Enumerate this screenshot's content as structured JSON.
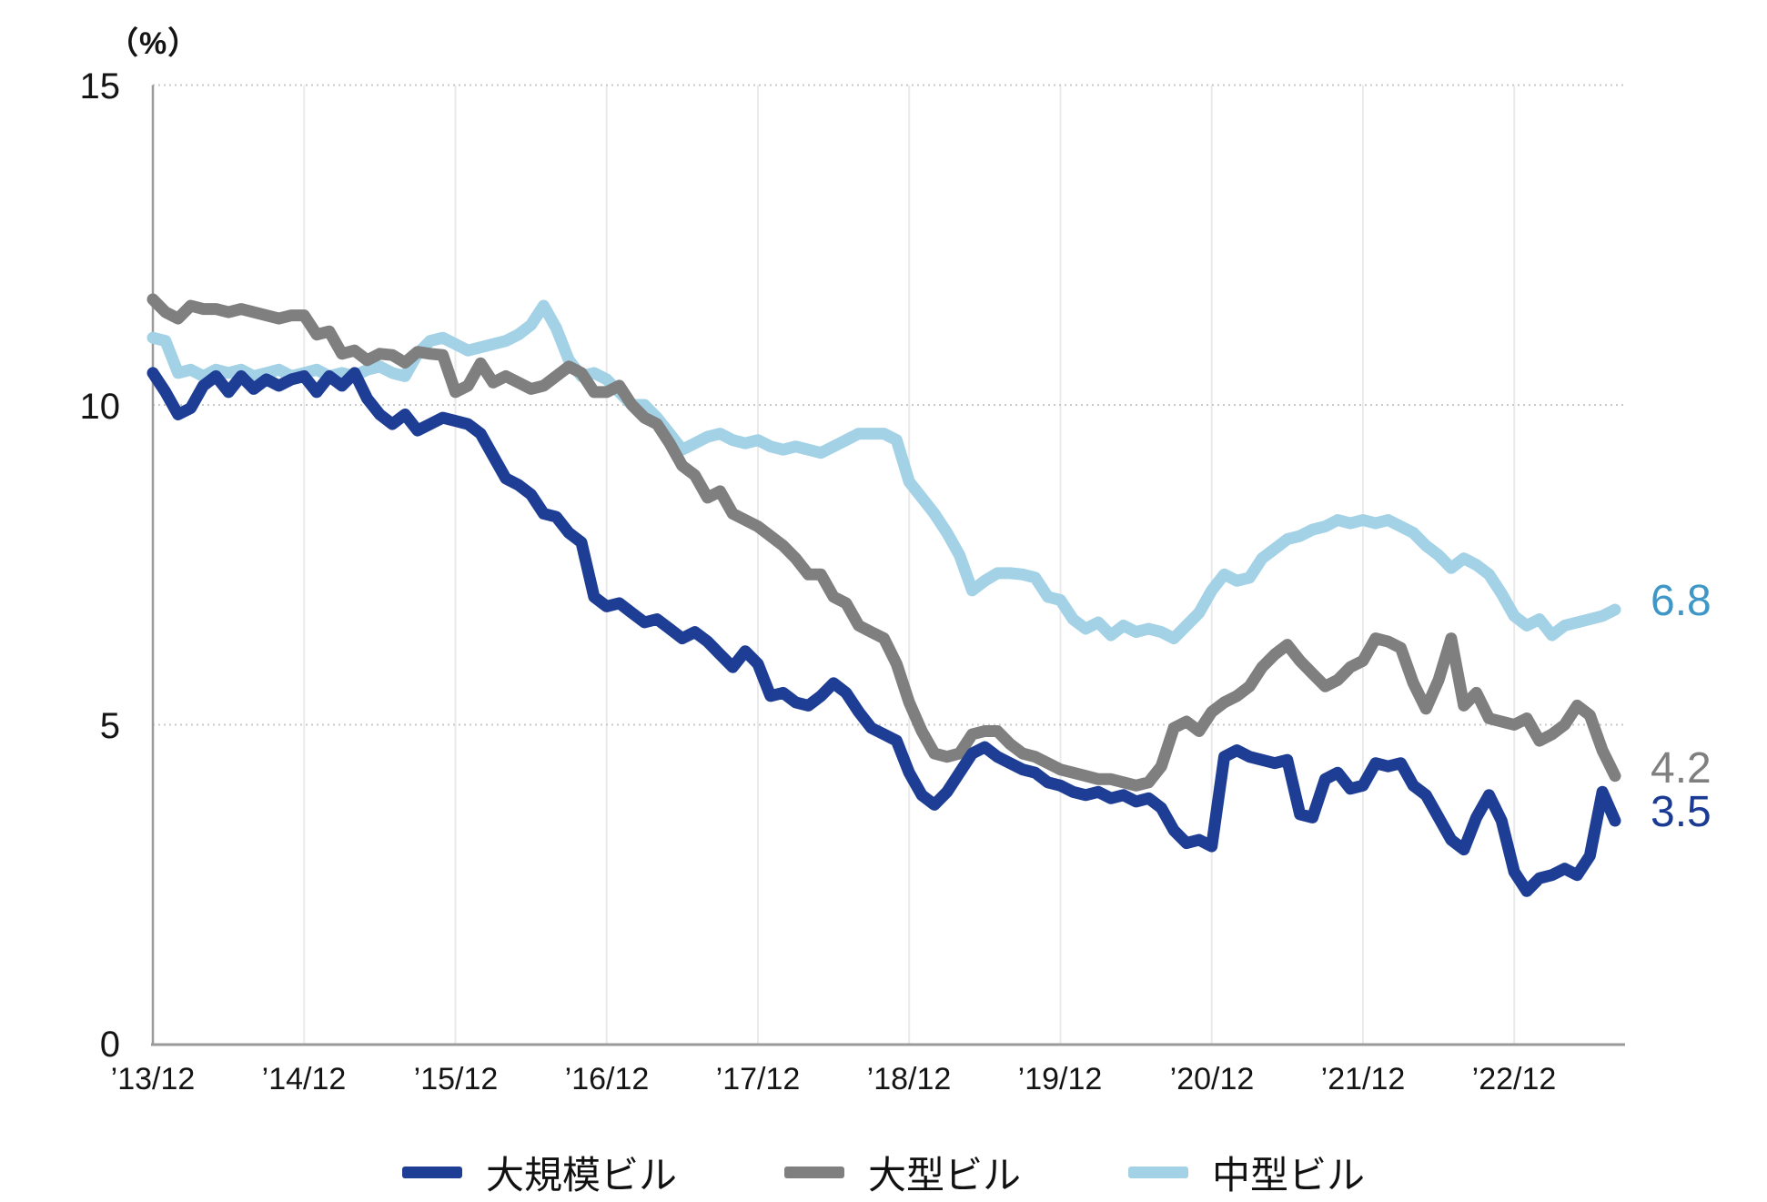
{
  "y_axis_unit": "（%）",
  "end_labels": [
    {
      "series": "中型ビル",
      "text": "6.8",
      "color": "#3e97c6"
    },
    {
      "series": "大型ビル",
      "text": "4.2",
      "color": "#7f7f7f"
    },
    {
      "series": "大規模ビル",
      "text": "3.5",
      "color": "#1a3a94"
    }
  ],
  "legend": [
    {
      "label": "大規模ビル",
      "color": "#1e3e95"
    },
    {
      "label": "大型ビル",
      "color": "#7f7f7f"
    },
    {
      "label": "中型ビル",
      "color": "#a3d2e6"
    }
  ],
  "chart_data": {
    "type": "line",
    "title": "",
    "xlabel": "",
    "ylabel": "（%）",
    "ylim": [
      0,
      15
    ],
    "y_tick_labels": [
      "15",
      "10",
      "5",
      "0"
    ],
    "y_tick_values": [
      15,
      10,
      5,
      0
    ],
    "x_tick_labels": [
      "’13/12",
      "’14/12",
      "’15/12",
      "’16/12",
      "’17/12",
      "’18/12",
      "’19/12",
      "’20/12",
      "’21/12",
      "’22/12"
    ],
    "x_start": "2013/12",
    "x_end": "2023/08",
    "interval": "monthly",
    "months_per_x_tick": 12,
    "grid": {
      "vertical": "solid-light",
      "horizontal": "dotted at 5,10,15"
    },
    "legend_position": "bottom",
    "series": [
      {
        "name": "中型ビル",
        "color": "#a3d2e6",
        "end_value": 6.8,
        "values": [
          11.05,
          11.0,
          10.5,
          10.55,
          10.45,
          10.55,
          10.5,
          10.55,
          10.45,
          10.5,
          10.55,
          10.45,
          10.5,
          10.55,
          10.45,
          10.5,
          10.45,
          10.55,
          10.6,
          10.5,
          10.45,
          10.8,
          11.0,
          11.05,
          10.95,
          10.85,
          10.9,
          10.95,
          11.0,
          11.1,
          11.25,
          11.55,
          11.2,
          10.7,
          10.45,
          10.5,
          10.4,
          10.2,
          10.0,
          10.0,
          9.8,
          9.55,
          9.3,
          9.4,
          9.5,
          9.55,
          9.45,
          9.4,
          9.45,
          9.35,
          9.3,
          9.35,
          9.3,
          9.25,
          9.35,
          9.45,
          9.55,
          9.55,
          9.55,
          9.45,
          8.8,
          8.55,
          8.3,
          8.0,
          7.65,
          7.1,
          7.25,
          7.37,
          7.37,
          7.35,
          7.3,
          7.0,
          6.95,
          6.65,
          6.5,
          6.6,
          6.4,
          6.55,
          6.45,
          6.5,
          6.45,
          6.35,
          6.55,
          6.75,
          7.1,
          7.35,
          7.25,
          7.3,
          7.6,
          7.75,
          7.9,
          7.95,
          8.05,
          8.1,
          8.2,
          8.15,
          8.2,
          8.15,
          8.2,
          8.1,
          8.0,
          7.8,
          7.65,
          7.45,
          7.6,
          7.5,
          7.35,
          7.05,
          6.7,
          6.55,
          6.65,
          6.4,
          6.55,
          6.6,
          6.65,
          6.7,
          6.8
        ]
      },
      {
        "name": "大型ビル",
        "color": "#7f7f7f",
        "end_value": 4.2,
        "values": [
          11.65,
          11.45,
          11.35,
          11.55,
          11.5,
          11.5,
          11.45,
          11.5,
          11.45,
          11.4,
          11.35,
          11.4,
          11.4,
          11.1,
          11.15,
          10.8,
          10.85,
          10.7,
          10.8,
          10.78,
          10.66,
          10.83,
          10.8,
          10.78,
          10.2,
          10.3,
          10.65,
          10.35,
          10.45,
          10.35,
          10.25,
          10.3,
          10.45,
          10.6,
          10.5,
          10.2,
          10.2,
          10.3,
          10.0,
          9.8,
          9.7,
          9.4,
          9.05,
          8.9,
          8.55,
          8.65,
          8.3,
          8.2,
          8.1,
          7.95,
          7.8,
          7.6,
          7.35,
          7.35,
          7.0,
          6.9,
          6.55,
          6.45,
          6.35,
          5.95,
          5.35,
          4.9,
          4.55,
          4.5,
          4.55,
          4.85,
          4.9,
          4.9,
          4.7,
          4.55,
          4.5,
          4.4,
          4.3,
          4.25,
          4.2,
          4.15,
          4.15,
          4.1,
          4.05,
          4.1,
          4.35,
          4.95,
          5.05,
          4.9,
          5.2,
          5.35,
          5.45,
          5.6,
          5.9,
          6.1,
          6.25,
          6.0,
          5.8,
          5.6,
          5.7,
          5.9,
          6.0,
          6.35,
          6.3,
          6.2,
          5.65,
          5.25,
          5.7,
          6.35,
          5.3,
          5.5,
          5.1,
          5.05,
          5.0,
          5.1,
          4.75,
          4.85,
          5.0,
          5.3,
          5.15,
          4.6,
          4.2
        ]
      },
      {
        "name": "大規模ビル",
        "color": "#1e3e95",
        "end_value": 3.5,
        "values": [
          10.5,
          10.2,
          9.85,
          9.95,
          10.3,
          10.45,
          10.2,
          10.45,
          10.25,
          10.4,
          10.3,
          10.4,
          10.45,
          10.2,
          10.45,
          10.3,
          10.5,
          10.1,
          9.85,
          9.7,
          9.85,
          9.6,
          9.7,
          9.8,
          9.75,
          9.7,
          9.55,
          9.2,
          8.85,
          8.75,
          8.6,
          8.3,
          8.25,
          8.0,
          7.85,
          7.0,
          6.85,
          6.9,
          6.75,
          6.6,
          6.65,
          6.5,
          6.35,
          6.45,
          6.3,
          6.1,
          5.9,
          6.15,
          5.95,
          5.45,
          5.5,
          5.35,
          5.3,
          5.45,
          5.65,
          5.5,
          5.2,
          4.95,
          4.85,
          4.75,
          4.25,
          3.9,
          3.75,
          3.95,
          4.25,
          4.55,
          4.65,
          4.5,
          4.4,
          4.3,
          4.25,
          4.1,
          4.05,
          3.95,
          3.9,
          3.95,
          3.85,
          3.9,
          3.8,
          3.85,
          3.7,
          3.35,
          3.15,
          3.2,
          3.1,
          4.5,
          4.6,
          4.5,
          4.45,
          4.4,
          4.45,
          3.6,
          3.55,
          4.15,
          4.25,
          4.0,
          4.05,
          4.4,
          4.35,
          4.4,
          4.05,
          3.9,
          3.55,
          3.2,
          3.05,
          3.55,
          3.9,
          3.5,
          2.7,
          2.4,
          2.6,
          2.65,
          2.75,
          2.65,
          2.95,
          3.95,
          3.5
        ]
      }
    ]
  },
  "colors": {
    "axis": "#9a9a9a",
    "grid_vertical": "#eaeaea",
    "grid_dotted": "#c9c9c9",
    "text": "#141414"
  }
}
